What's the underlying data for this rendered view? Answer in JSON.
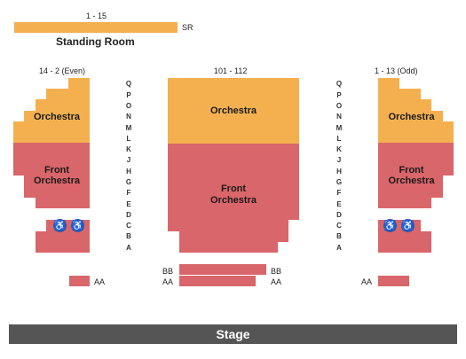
{
  "standing": {
    "range": "1 - 15",
    "code": "SR",
    "label": "Standing Room"
  },
  "left": {
    "header": "14 - 2 (Even)",
    "orchestra": "Orchestra",
    "front_orchestra_1": "Front",
    "front_orchestra_2": "Orchestra",
    "aa": "AA"
  },
  "center": {
    "header": "101 - 112",
    "orchestra": "Orchestra",
    "front_orchestra_1": "Front",
    "front_orchestra_2": "Orchestra",
    "bb_left": "BB",
    "bb_right": "BB",
    "aa_left": "AA",
    "aa_right": "AA"
  },
  "right": {
    "header": "1 - 13 (Odd)",
    "orchestra": "Orchestra",
    "front_orchestra_1": "Front",
    "front_orchestra_2": "Orchestra",
    "aa": "AA"
  },
  "rows": [
    "Q",
    "P",
    "O",
    "N",
    "M",
    "L",
    "K",
    "J",
    "H",
    "G",
    "F",
    "E",
    "D",
    "C",
    "B",
    "A"
  ],
  "stage": "Stage",
  "wheelchair_icon": "wheelchair-icon",
  "colors": {
    "orchestra": "#f4b04f",
    "front_orchestra": "#d9666a",
    "stage": "#555555",
    "wheelchair": "#2f5aa8"
  }
}
